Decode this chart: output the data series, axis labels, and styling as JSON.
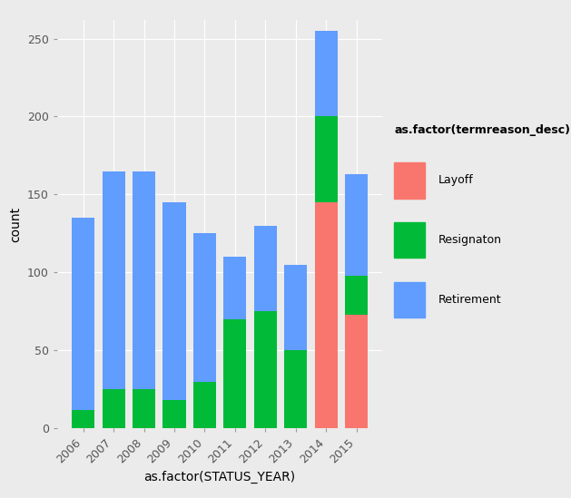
{
  "years": [
    "2006",
    "2007",
    "2008",
    "2009",
    "2010",
    "2011",
    "2012",
    "2013",
    "2014",
    "2015"
  ],
  "layoff": [
    0,
    0,
    0,
    0,
    0,
    0,
    0,
    0,
    145,
    73
  ],
  "resignation": [
    12,
    25,
    25,
    18,
    30,
    70,
    75,
    50,
    55,
    25
  ],
  "retirement": [
    123,
    140,
    140,
    127,
    95,
    40,
    55,
    55,
    55,
    65
  ],
  "colors": {
    "Layoff": "#F8766D",
    "Resignaton": "#00BA38",
    "Retirement": "#619CFF"
  },
  "legend_title": "as.factor(termreason_desc)",
  "xlabel": "as.factor(STATUS_YEAR)",
  "ylabel": "count",
  "ylim": [
    0,
    262
  ],
  "yticks": [
    0,
    50,
    100,
    150,
    200,
    250
  ],
  "bg_color": "#EBEBEB",
  "grid_color": "#FFFFFF",
  "axis_fontsize": 10,
  "tick_fontsize": 9,
  "legend_fontsize": 9,
  "legend_title_fontsize": 9
}
